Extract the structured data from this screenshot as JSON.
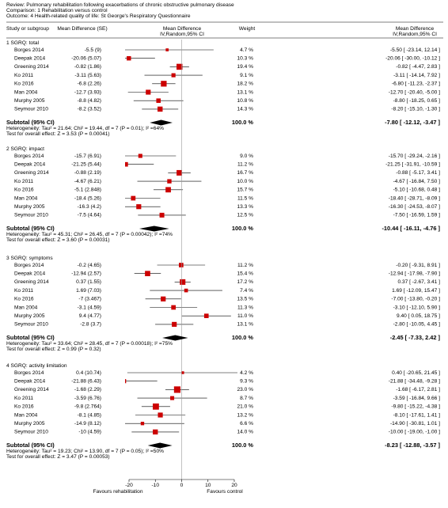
{
  "header": {
    "review": "Review:  Pulmonary rehabilitation following exacerbations of chronic obstructive pulmonary disease",
    "comparison": "Comparison:  1 Rehabilitation versus control",
    "outcome": "Outcome:  4 Health-related quality of life: St George's Respiratory Questionnaire"
  },
  "chart_data": {
    "type": "forest",
    "columns": {
      "study": "Study or subgroup",
      "md_se": "Mean Difference (SE)",
      "weight": "Weight",
      "effect": [
        "Mean Difference",
        "IV,Random,95% CI"
      ]
    },
    "xlim": [
      -20,
      20
    ],
    "xticks": [
      -20,
      -10,
      0,
      10,
      20
    ],
    "reference": 0,
    "x_labels": [
      "Favours rehabilitation",
      "Favours control"
    ],
    "square_color": "#cc0000",
    "diamond_color": "#000000",
    "groups": [
      {
        "title": "1 SGRQ: total",
        "studies": [
          {
            "study": "Borges 2014",
            "md_se": "-5.5 (9)",
            "md": -5.5,
            "ci": [
              -23.14,
              12.14
            ],
            "weight": 4.7,
            "weight_label": "4.7 %",
            "ci_label": "-5.50 [ -23.14, 12.14 ]"
          },
          {
            "study": "Deepak 2014",
            "md_se": "-20.06 (5.07)",
            "md": -20.06,
            "ci": [
              -30.0,
              -10.12
            ],
            "weight": 10.3,
            "weight_label": "10.3 %",
            "ci_label": "-20.06 [ -30.00, -10.12 ]"
          },
          {
            "study": "Greening 2014",
            "md_se": "-0.82 (1.86)",
            "md": -0.82,
            "ci": [
              -4.47,
              2.83
            ],
            "weight": 19.4,
            "weight_label": "19.4 %",
            "ci_label": "-0.82 [ -4.47, 2.83 ]"
          },
          {
            "study": "Ko 2011",
            "md_se": "-3.11 (5.63)",
            "md": -3.11,
            "ci": [
              -14.14,
              7.92
            ],
            "weight": 9.1,
            "weight_label": "9.1 %",
            "ci_label": "-3.11 [ -14.14, 7.92 ]"
          },
          {
            "study": "Ko 2016",
            "md_se": "-6.8 (2.26)",
            "md": -6.8,
            "ci": [
              -11.23,
              -2.37
            ],
            "weight": 18.2,
            "weight_label": "18.2 %",
            "ci_label": "-6.80 [ -11.23, -2.37 ]"
          },
          {
            "study": "Man 2004",
            "md_se": "-12.7 (3.93)",
            "md": -12.7,
            "ci": [
              -20.4,
              -5.0
            ],
            "weight": 13.1,
            "weight_label": "13.1 %",
            "ci_label": "-12.70 [ -20.40, -5.00 ]"
          },
          {
            "study": "Murphy 2005",
            "md_se": "-8.8 (4.82)",
            "md": -8.8,
            "ci": [
              -18.25,
              0.65
            ],
            "weight": 10.8,
            "weight_label": "10.8 %",
            "ci_label": "-8.80 [ -18.25, 0.65 ]"
          },
          {
            "study": "Seymour 2010",
            "md_se": "-8.2 (3.52)",
            "md": -8.2,
            "ci": [
              -15.1,
              -1.3
            ],
            "weight": 14.3,
            "weight_label": "14.3 %",
            "ci_label": "-8.20 [ -15.10, -1.30 ]"
          }
        ],
        "subtotal": {
          "label": "Subtotal (95% CI)",
          "weight_label": "100.0 %",
          "md": -7.8,
          "ci": [
            -12.12,
            -3.47
          ],
          "ci_label": "-7.80 [ -12.12, -3.47 ]"
        },
        "heterogeneity": "Heterogeneity: Tau² = 21.64; Chi² = 19.44, df = 7 (P = 0.01); I² =64%",
        "overall": "Test for overall effect: Z = 3.53 (P = 0.00041)"
      },
      {
        "title": "2 SGRQ: impact",
        "studies": [
          {
            "study": "Borges 2014",
            "md_se": "-15.7 (6.91)",
            "md": -15.7,
            "ci": [
              -29.24,
              -2.16
            ],
            "weight": 9.0,
            "weight_label": "9.0 %",
            "ci_label": "-15.70 [ -29.24, -2.16 ]"
          },
          {
            "study": "Deepak 2014",
            "md_se": "-21.25 (5.44)",
            "md": -21.25,
            "ci": [
              -31.91,
              -10.59
            ],
            "weight": 11.2,
            "weight_label": "11.2 %",
            "ci_label": "-21.25 [ -31.91, -10.59 ]"
          },
          {
            "study": "Greening 2014",
            "md_se": "-0.88 (2.19)",
            "md": -0.88,
            "ci": [
              -5.17,
              3.41
            ],
            "weight": 16.7,
            "weight_label": "16.7 %",
            "ci_label": "-0.88 [ -5.17, 3.41 ]"
          },
          {
            "study": "Ko 2011",
            "md_se": "-4.67 (6.21)",
            "md": -4.67,
            "ci": [
              -16.84,
              7.5
            ],
            "weight": 10.0,
            "weight_label": "10.0 %",
            "ci_label": "-4.67 [ -16.84, 7.50 ]"
          },
          {
            "study": "Ko 2016",
            "md_se": "-5.1 (2.848)",
            "md": -5.1,
            "ci": [
              -10.68,
              0.48
            ],
            "weight": 15.7,
            "weight_label": "15.7 %",
            "ci_label": "-5.10 [ -10.68, 0.48 ]"
          },
          {
            "study": "Man 2004",
            "md_se": "-18.4 (5.26)",
            "md": -18.4,
            "ci": [
              -28.71,
              -8.09
            ],
            "weight": 11.5,
            "weight_label": "11.5 %",
            "ci_label": "-18.40 [ -28.71, -8.09 ]"
          },
          {
            "study": "Murphy 2005",
            "md_se": "-16.3 (4.2)",
            "md": -16.3,
            "ci": [
              -24.53,
              -8.07
            ],
            "weight": 13.3,
            "weight_label": "13.3 %",
            "ci_label": "-16.30 [ -24.53, -8.07 ]"
          },
          {
            "study": "Seymour 2010",
            "md_se": "-7.5 (4.64)",
            "md": -7.5,
            "ci": [
              -16.59,
              1.59
            ],
            "weight": 12.5,
            "weight_label": "12.5 %",
            "ci_label": "-7.50 [ -16.59, 1.59 ]"
          }
        ],
        "subtotal": {
          "label": "Subtotal (95% CI)",
          "weight_label": "100.0 %",
          "md": -10.44,
          "ci": [
            -16.11,
            -4.76
          ],
          "ci_label": "-10.44 [ -16.11, -4.76 ]"
        },
        "heterogeneity": "Heterogeneity: Tau² = 45.31; Chi² = 26.45, df = 7 (P = 0.00042); I² =74%",
        "overall": "Test for overall effect: Z = 3.60 (P = 0.00031)"
      },
      {
        "title": "3 SGRQ: symptoms",
        "studies": [
          {
            "study": "Borges 2014",
            "md_se": "-0.2 (4.65)",
            "md": -0.2,
            "ci": [
              -9.31,
              8.91
            ],
            "weight": 11.2,
            "weight_label": "11.2 %",
            "ci_label": "-0.20 [ -9.31, 8.91 ]"
          },
          {
            "study": "Deepak 2014",
            "md_se": "-12.94 (2.57)",
            "md": -12.94,
            "ci": [
              -17.98,
              -7.9
            ],
            "weight": 15.4,
            "weight_label": "15.4 %",
            "ci_label": "-12.94 [ -17.98, -7.90 ]"
          },
          {
            "study": "Greening 2014",
            "md_se": "0.37 (1.55)",
            "md": 0.37,
            "ci": [
              -2.67,
              3.41
            ],
            "weight": 17.2,
            "weight_label": "17.2 %",
            "ci_label": "0.37 [ -2.67, 3.41 ]"
          },
          {
            "study": "Ko 2011",
            "md_se": "1.69 (7.03)",
            "md": 1.69,
            "ci": [
              -12.09,
              15.47
            ],
            "weight": 7.4,
            "weight_label": "7.4 %",
            "ci_label": "1.69 [ -12.09, 15.47 ]"
          },
          {
            "study": "Ko 2016",
            "md_se": "-7 (3.467)",
            "md": -7.0,
            "ci": [
              -13.8,
              -0.2
            ],
            "weight": 13.5,
            "weight_label": "13.5 %",
            "ci_label": "-7.00 [ -13.80, -0.20 ]"
          },
          {
            "study": "Man 2004",
            "md_se": "-3.1 (4.59)",
            "md": -3.1,
            "ci": [
              -12.1,
              5.9
            ],
            "weight": 11.3,
            "weight_label": "11.3 %",
            "ci_label": "-3.10 [ -12.10, 5.90 ]"
          },
          {
            "study": "Murphy 2005",
            "md_se": "9.4 (4.77)",
            "md": 9.4,
            "ci": [
              0.05,
              18.75
            ],
            "weight": 11.0,
            "weight_label": "11.0 %",
            "ci_label": "9.40 [ 0.05, 18.75 ]"
          },
          {
            "study": "Seymour 2010",
            "md_se": "-2.8 (3.7)",
            "md": -2.8,
            "ci": [
              -10.05,
              4.45
            ],
            "weight": 13.1,
            "weight_label": "13.1 %",
            "ci_label": "-2.80 [ -10.05, 4.45 ]"
          }
        ],
        "subtotal": {
          "label": "Subtotal (95% CI)",
          "weight_label": "100.0 %",
          "md": -2.45,
          "ci": [
            -7.33,
            2.42
          ],
          "ci_label": "-2.45 [ -7.33, 2.42 ]"
        },
        "heterogeneity": "Heterogeneity: Tau² = 33.64; Chi² = 28.45, df = 7 (P = 0.00018); I² =75%",
        "overall": "Test for overall effect: Z = 0.99 (P = 0.32)"
      },
      {
        "title": "4 SGRQ: activity limitation",
        "studies": [
          {
            "study": "Borges 2014",
            "md_se": "0.4 (10.74)",
            "md": 0.4,
            "ci": [
              -20.65,
              21.45
            ],
            "weight": 4.2,
            "weight_label": "4.2 %",
            "ci_label": "0.40 [ -20.65, 21.45 ]"
          },
          {
            "study": "Deepak 2014",
            "md_se": "-21.88 (6.43)",
            "md": -21.88,
            "ci": [
              -34.48,
              -9.28
            ],
            "weight": 9.3,
            "weight_label": "9.3 %",
            "ci_label": "-21.88 [ -34.48, -9.28 ]"
          },
          {
            "study": "Greening 2014",
            "md_se": "-1.68 (2.29)",
            "md": -1.68,
            "ci": [
              -6.17,
              2.81
            ],
            "weight": 23.0,
            "weight_label": "23.0 %",
            "ci_label": "-1.68 [ -6.17, 2.81 ]"
          },
          {
            "study": "Ko 2011",
            "md_se": "-3.59 (6.76)",
            "md": -3.59,
            "ci": [
              -16.84,
              9.66
            ],
            "weight": 8.7,
            "weight_label": "8.7 %",
            "ci_label": "-3.59 [ -16.84, 9.66 ]"
          },
          {
            "study": "Ko 2016",
            "md_se": "-9.8 (2.764)",
            "md": -9.8,
            "ci": [
              -15.22,
              -4.38
            ],
            "weight": 21.0,
            "weight_label": "21.0 %",
            "ci_label": "-9.80 [ -15.22, -4.38 ]"
          },
          {
            "study": "Man 2004",
            "md_se": "-8.1 (4.85)",
            "md": -8.1,
            "ci": [
              -17.61,
              1.41
            ],
            "weight": 13.2,
            "weight_label": "13.2 %",
            "ci_label": "-8.10 [ -17.61, 1.41 ]"
          },
          {
            "study": "Murphy 2005",
            "md_se": "-14.9 (8.12)",
            "md": -14.9,
            "ci": [
              -30.81,
              1.01
            ],
            "weight": 6.6,
            "weight_label": "6.6 %",
            "ci_label": "-14.90 [ -30.81, 1.01 ]"
          },
          {
            "study": "Seymour 2010",
            "md_se": "-10 (4.59)",
            "md": -10.0,
            "ci": [
              -19.0,
              -1.0
            ],
            "weight": 14.0,
            "weight_label": "14.0 %",
            "ci_label": "-10.00 [ -19.00, -1.00 ]"
          }
        ],
        "subtotal": {
          "label": "Subtotal (95% CI)",
          "weight_label": "100.0 %",
          "md": -8.23,
          "ci": [
            -12.88,
            -3.57
          ],
          "ci_label": "-8.23 [ -12.88, -3.57 ]"
        },
        "heterogeneity": "Heterogeneity: Tau² = 19.23; Chi² = 13.90, df = 7 (P = 0.05); I² =50%",
        "overall": "Test for overall effect: Z = 3.47 (P = 0.00053)"
      }
    ]
  }
}
